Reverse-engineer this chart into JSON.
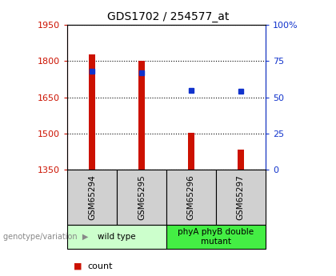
{
  "title": "GDS1702 / 254577_at",
  "samples": [
    "GSM65294",
    "GSM65295",
    "GSM65296",
    "GSM65297"
  ],
  "count_values": [
    1828,
    1800,
    1503,
    1435
  ],
  "percentile_values": [
    68,
    67,
    55,
    54
  ],
  "ylim_left": [
    1350,
    1950
  ],
  "ylim_right": [
    0,
    100
  ],
  "yticks_left": [
    1350,
    1500,
    1650,
    1800,
    1950
  ],
  "yticks_right": [
    0,
    25,
    50,
    75,
    100
  ],
  "bar_color": "#cc1100",
  "dot_color": "#1133cc",
  "bar_width": 0.12,
  "groups": [
    {
      "label": "wild type",
      "samples": [
        0,
        1
      ],
      "color": "#ccffcc"
    },
    {
      "label": "phyA phyB double\nmutant",
      "samples": [
        2,
        3
      ],
      "color": "#44ee44"
    }
  ],
  "axis_label_color_left": "#cc1100",
  "axis_label_color_right": "#1133cc",
  "plot_bg_color": "#ffffff",
  "sample_box_color": "#d0d0d0"
}
